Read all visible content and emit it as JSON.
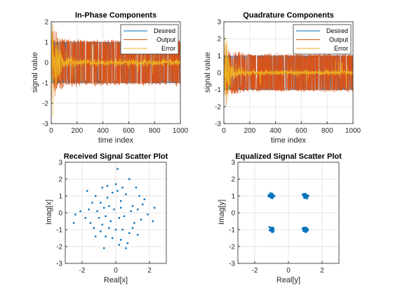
{
  "colors": {
    "desired": "#0072BD",
    "output": "#D95319",
    "error": "#EDB120",
    "scatter": "#0072BD",
    "grid": "#e6e6e6",
    "axis": "#262626"
  },
  "chart_data": [
    {
      "type": "line",
      "title": "In-Phase Components",
      "xlabel": "time index",
      "ylabel": "signal value",
      "xlim": [
        0,
        1000
      ],
      "ylim": [
        -3,
        2
      ],
      "xticks": [
        "0",
        "200",
        "400",
        "600",
        "800",
        "1000"
      ],
      "yticks": [
        "-3",
        "-2",
        "-1",
        "0",
        "1",
        "2"
      ],
      "grid": true,
      "legend": "top-right",
      "series": [
        {
          "name": "Desired",
          "levels": [
            -1,
            1
          ],
          "description": "QPSK symbols alternating between -1 and +1"
        },
        {
          "name": "Output",
          "levels": [
            -1,
            1
          ],
          "startup": {
            "range": [
              0,
              150
            ],
            "min": -1.5,
            "max": 1.5
          }
        },
        {
          "name": "Error",
          "decay": {
            "range": [
              0,
              150
            ],
            "min": -2.6,
            "max": 1.9
          },
          "steady_range": [
            -0.3,
            0.3
          ]
        }
      ]
    },
    {
      "type": "line",
      "title": "Quadrature Components",
      "xlabel": "time index",
      "ylabel": "signal value",
      "xlim": [
        0,
        1000
      ],
      "ylim": [
        -3,
        3
      ],
      "xticks": [
        "0",
        "200",
        "400",
        "600",
        "800",
        "1000"
      ],
      "yticks": [
        "-3",
        "-2",
        "-1",
        "0",
        "1",
        "2",
        "3"
      ],
      "grid": true,
      "legend": "top-right",
      "series": [
        {
          "name": "Desired",
          "levels": [
            -1,
            1
          ],
          "description": "QPSK symbols alternating between -1 and +1"
        },
        {
          "name": "Output",
          "levels": [
            -1,
            1
          ],
          "startup": {
            "range": [
              0,
              150
            ],
            "min": -1.5,
            "max": 1.5
          }
        },
        {
          "name": "Error",
          "decay": {
            "range": [
              0,
              150
            ],
            "min": -2.5,
            "max": 1.6
          },
          "steady_range": [
            -0.3,
            0.3
          ]
        }
      ]
    },
    {
      "type": "scatter",
      "title": "Received Signal Scatter Plot",
      "xlabel": "Real[x]",
      "ylabel": "Imag[x]",
      "xlim": [
        -3,
        3
      ],
      "ylim": [
        -3,
        3
      ],
      "xticks": [
        "-2",
        "0",
        "2"
      ],
      "yticks": [
        "-3",
        "-2",
        "-1",
        "0",
        "1",
        "2",
        "3"
      ],
      "grid": true,
      "points": [
        [
          -0.8,
          1.5
        ],
        [
          -0.5,
          1.6
        ],
        [
          0.1,
          2.6
        ],
        [
          0.8,
          2.0
        ],
        [
          -1.2,
          1.0
        ],
        [
          -1.4,
          0.6
        ],
        [
          -1.6,
          0.2
        ],
        [
          -0.9,
          0.6
        ],
        [
          -0.5,
          0.9
        ],
        [
          0.0,
          1.7
        ],
        [
          -0.2,
          1.2
        ],
        [
          0.4,
          1.5
        ],
        [
          1.2,
          1.5
        ],
        [
          0.6,
          1.1
        ],
        [
          1.4,
          1.0
        ],
        [
          1.7,
          0.8
        ],
        [
          1.6,
          0.5
        ],
        [
          2.3,
          0.3
        ],
        [
          1.9,
          -0.1
        ],
        [
          1.0,
          0.4
        ],
        [
          0.3,
          0.7
        ],
        [
          -0.1,
          0.2
        ],
        [
          -0.4,
          0.4
        ],
        [
          -0.7,
          0.3
        ],
        [
          -1.1,
          0.1
        ],
        [
          -2.1,
          0.1
        ],
        [
          -2.4,
          -0.1
        ],
        [
          -2.5,
          -0.6
        ],
        [
          -1.8,
          -0.3
        ],
        [
          -1.5,
          -0.6
        ],
        [
          -1.3,
          -0.9
        ],
        [
          -1.2,
          -1.4
        ],
        [
          -0.8,
          -0.7
        ],
        [
          -0.9,
          -1.1
        ],
        [
          -0.6,
          -1.4
        ],
        [
          -0.7,
          -2.1
        ],
        [
          -0.2,
          -1.5
        ],
        [
          0.4,
          -1.0
        ],
        [
          0.3,
          -1.6
        ],
        [
          0.6,
          -2.1
        ],
        [
          0.8,
          -1.2
        ],
        [
          1.0,
          -0.9
        ],
        [
          1.1,
          -0.6
        ],
        [
          1.5,
          -0.4
        ],
        [
          2.2,
          -0.5
        ],
        [
          1.3,
          -1.3
        ],
        [
          0.7,
          -1.8
        ],
        [
          0.2,
          -1.9
        ],
        [
          0.0,
          -1.0
        ],
        [
          -0.3,
          -0.5
        ],
        [
          0.2,
          -0.3
        ],
        [
          0.5,
          -0.2
        ],
        [
          0.9,
          0.1
        ],
        [
          -0.6,
          -0.2
        ],
        [
          -1.0,
          -0.3
        ],
        [
          0.3,
          0.3
        ],
        [
          1.3,
          0.2
        ],
        [
          -1.7,
          1.3
        ],
        [
          0.1,
          1.3
        ],
        [
          -0.4,
          -0.9
        ]
      ]
    },
    {
      "type": "scatter",
      "title": "Equalized Signal Scatter Plot",
      "xlabel": "Real[y]",
      "ylabel": "Imag[y]",
      "xlim": [
        -3,
        3
      ],
      "ylim": [
        -3,
        3
      ],
      "xticks": [
        "-2",
        "0",
        "2"
      ],
      "yticks": [
        "-3",
        "-2",
        "-1",
        "0",
        "1",
        "2",
        "3"
      ],
      "grid": true,
      "clusters": [
        {
          "center": [
            -1.0,
            1.0
          ],
          "spread": 0.15
        },
        {
          "center": [
            1.0,
            1.0
          ],
          "spread": 0.15
        },
        {
          "center": [
            -1.0,
            -1.0
          ],
          "spread": 0.15
        },
        {
          "center": [
            1.0,
            -1.0
          ],
          "spread": 0.15
        }
      ]
    }
  ]
}
